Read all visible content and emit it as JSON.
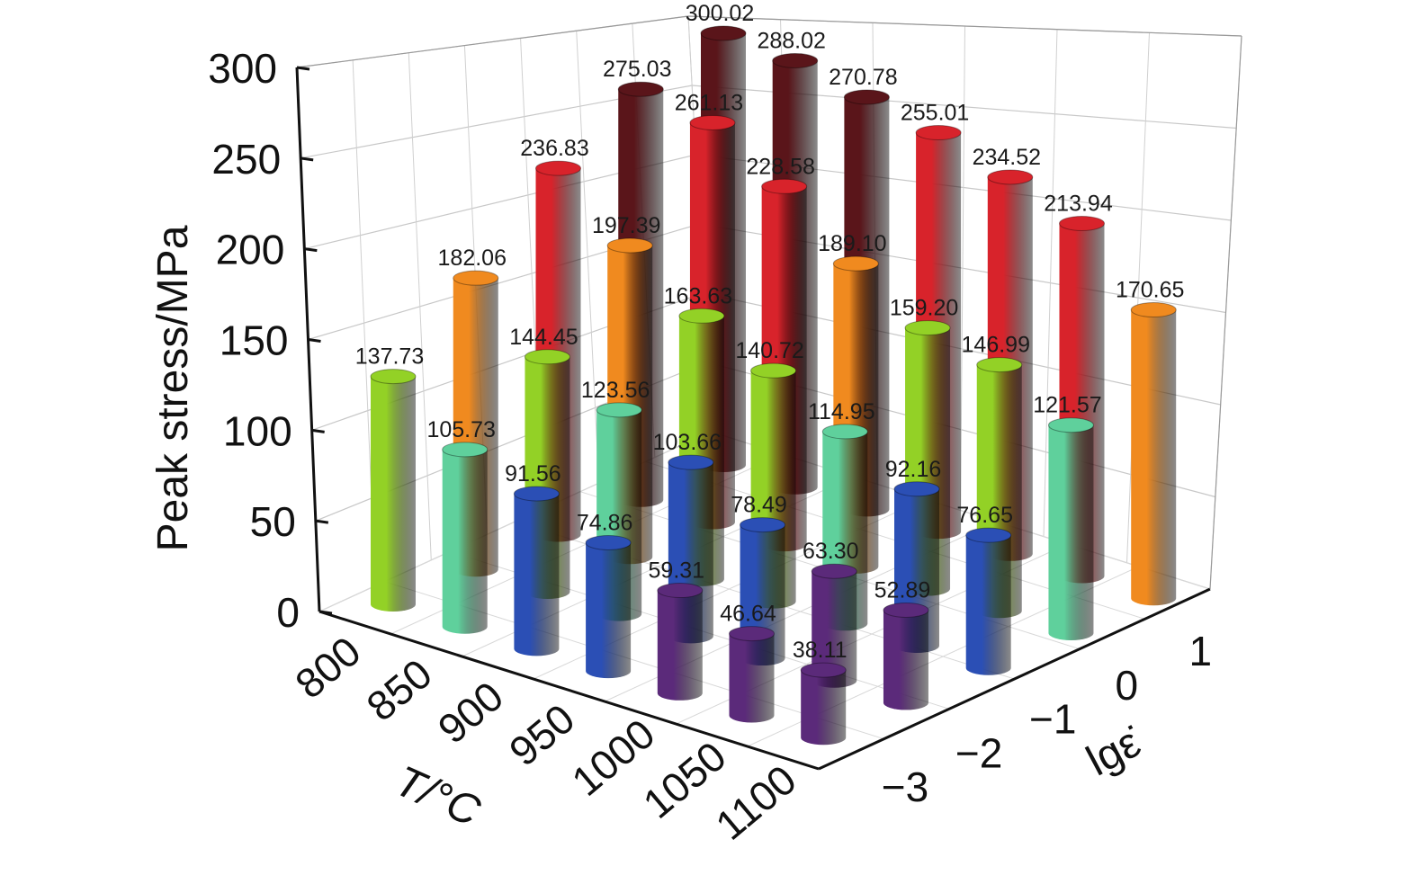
{
  "chart_data": {
    "type": "bar",
    "variant": "3d-cylinder",
    "zlabel": "Peak stress/MPa",
    "xlabel": "T/°C",
    "ylabel": "lgε̇",
    "x_categories": [
      "800",
      "850",
      "900",
      "950",
      "1000",
      "1050",
      "1100"
    ],
    "y_categories": [
      "−3",
      "−2",
      "−1",
      "0",
      "1"
    ],
    "z_ticks": [
      "0",
      "50",
      "100",
      "150",
      "200",
      "250",
      "300"
    ],
    "zlim": [
      0,
      300
    ],
    "grid": true,
    "series": [
      {
        "lg_strain_rate": "−3",
        "values": [
          137.73,
          105.73,
          91.56,
          74.86,
          59.31,
          46.64,
          38.11
        ]
      },
      {
        "lg_strain_rate": "−2",
        "values": [
          182.06,
          144.45,
          123.56,
          103.66,
          78.49,
          63.3,
          52.89
        ]
      },
      {
        "lg_strain_rate": "−1",
        "values": [
          236.83,
          197.39,
          163.63,
          140.72,
          114.95,
          92.16,
          76.65
        ]
      },
      {
        "lg_strain_rate": "0",
        "values": [
          275.03,
          261.13,
          228.58,
          189.1,
          159.2,
          146.99,
          121.57
        ]
      },
      {
        "lg_strain_rate": "1",
        "values": [
          300.02,
          288.02,
          270.78,
          255.01,
          234.52,
          213.94,
          170.65
        ]
      }
    ],
    "color_scale": [
      {
        "max": 70,
        "color": "#5b2a7a"
      },
      {
        "max": 105,
        "color": "#2b4fb5"
      },
      {
        "max": 135,
        "color": "#5fd09c"
      },
      {
        "max": 170,
        "color": "#93d126"
      },
      {
        "max": 200,
        "color": "#f08a1f"
      },
      {
        "max": 265,
        "color": "#d8232b"
      },
      {
        "max": 400,
        "color": "#5a151a"
      }
    ]
  }
}
